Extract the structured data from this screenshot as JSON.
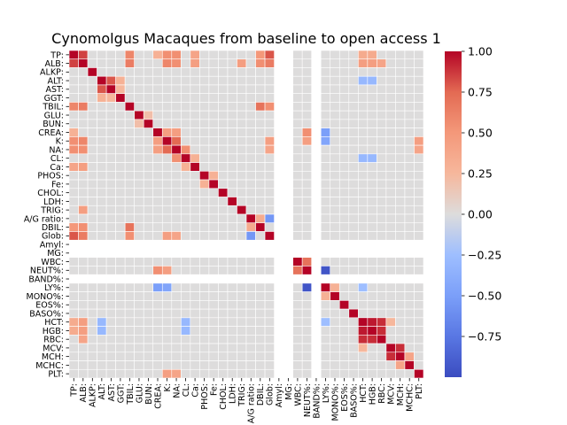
{
  "chart_data": {
    "type": "heatmap",
    "title": "Cynomolgus Macaques from baseline to open access 1",
    "labels": [
      "TP",
      "ALB",
      "ALKP",
      "ALT",
      "AST",
      "GGT",
      "TBIL",
      "GLU",
      "BUN",
      "CREA",
      "K",
      "NA",
      "CL",
      "Ca",
      "PHOS",
      "Fe",
      "CHOL",
      "LDH",
      "TRIG",
      "A/G ratio",
      "DBIL",
      "Glob",
      "Amyl",
      "MG",
      "WBC",
      "NEUT%",
      "BAND%",
      "LY%",
      "MONO%",
      "EOS%",
      "BASO%",
      "HCT",
      "HGB",
      "RBC",
      "MCV",
      "MCH",
      "MCHC",
      "PLT"
    ],
    "y_tick_labels": [
      "TP:",
      "ALB:",
      "ALKP:",
      "ALT:",
      "AST:",
      "GGT:",
      "TBIL:",
      "GLU:",
      "BUN:",
      "CREA:",
      "K:",
      "NA:",
      "CL:",
      "Ca:",
      "PHOS:",
      "Fe:",
      "CHOL:",
      "LDH:",
      "TRIG:",
      "A/G ratio:",
      "DBIL:",
      "Glob:",
      "Amyl:",
      "MG:",
      "WBC:",
      "NEUT%:",
      "BAND%:",
      "LY%:",
      "MONO%:",
      "EOS%:",
      "BASO%:",
      "HCT:",
      "HGB:",
      "RBC:",
      "MCV:",
      "MCH:",
      "MCHC:",
      "PLT:"
    ],
    "x_tick_labels": [
      "TP:",
      "ALB:",
      "ALKP:",
      "ALT:",
      "AST:",
      "GGT:",
      "TBIL:",
      "GLU:",
      "BUN:",
      "CREA:",
      "K:",
      "NA:",
      "CL:",
      "Ca:",
      "PHOS:",
      "Fe:",
      "CHOL:",
      "LDH:",
      "TRIG:",
      "A/G ratio:",
      "DBIL:",
      "Glob:",
      "Amyl:",
      "MG:",
      "WBC:",
      "NEUT%:",
      "BAND%:",
      "LY%:",
      "MONO%:",
      "EOS%:",
      "BASO%:",
      "HCT:",
      "HGB:",
      "RBC:",
      "MCV:",
      "MCH:",
      "MCHC:",
      "PLT:"
    ],
    "empty_labels": [
      "Amyl",
      "MG",
      "BAND%"
    ],
    "colorbar": {
      "min": -1,
      "max": 1,
      "ticks": [
        1.0,
        0.75,
        0.5,
        0.25,
        0.0,
        -0.25,
        -0.5,
        -0.75
      ],
      "tick_labels": [
        "1.00",
        "0.75",
        "0.50",
        "0.25",
        "0.00",
        "−0.25",
        "−0.50",
        "−0.75"
      ],
      "colormap": "coolwarm"
    },
    "correlations": [
      [
        "TP",
        "ALB",
        0.85
      ],
      [
        "TP",
        "TBIL",
        0.6
      ],
      [
        "TP",
        "K",
        0.55
      ],
      [
        "TP",
        "NA",
        0.55
      ],
      [
        "TP",
        "DBIL",
        0.5
      ],
      [
        "TP",
        "Glob",
        0.8
      ],
      [
        "TP",
        "CREA",
        0.3
      ],
      [
        "TP",
        "Ca",
        0.4
      ],
      [
        "ALB",
        "TBIL",
        0.65
      ],
      [
        "ALB",
        "K",
        0.6
      ],
      [
        "ALB",
        "NA",
        0.55
      ],
      [
        "ALB",
        "DBIL",
        0.55
      ],
      [
        "ALB",
        "Glob",
        0.65
      ],
      [
        "ALB",
        "Ca",
        0.45
      ],
      [
        "ALB",
        "TRIG",
        0.45
      ],
      [
        "ALT",
        "AST",
        0.8
      ],
      [
        "ALT",
        "GGT",
        0.3
      ],
      [
        "AST",
        "GGT",
        0.25
      ],
      [
        "TBIL",
        "DBIL",
        0.7
      ],
      [
        "TBIL",
        "Glob",
        0.55
      ],
      [
        "GLU",
        "BUN",
        0.2
      ],
      [
        "CREA",
        "K",
        0.45
      ],
      [
        "CREA",
        "NA",
        0.45
      ],
      [
        "CREA",
        "NEUT%",
        0.55
      ],
      [
        "CREA",
        "LY%",
        -0.5
      ],
      [
        "K",
        "NA",
        0.75
      ],
      [
        "K",
        "Glob",
        0.45
      ],
      [
        "K",
        "NEUT%",
        0.45
      ],
      [
        "K",
        "LY%",
        -0.45
      ],
      [
        "K",
        "PLT",
        0.45
      ],
      [
        "NA",
        "CL",
        0.55
      ],
      [
        "NA",
        "Glob",
        0.4
      ],
      [
        "NA",
        "PLT",
        0.4
      ],
      [
        "CL",
        "Ca",
        0.3
      ],
      [
        "PHOS",
        "Fe",
        0.3
      ],
      [
        "A/G ratio",
        "Glob",
        -0.55
      ],
      [
        "A/G ratio",
        "DBIL",
        0.35
      ],
      [
        "WBC",
        "NEUT%",
        0.7
      ],
      [
        "NEUT%",
        "LY%",
        -0.95
      ],
      [
        "LY%",
        "MONO%",
        0.3
      ],
      [
        "HCT",
        "HGB",
        0.95
      ],
      [
        "HCT",
        "RBC",
        0.9
      ],
      [
        "HGB",
        "RBC",
        0.9
      ],
      [
        "HCT",
        "ALB",
        0.45
      ],
      [
        "HGB",
        "ALB",
        0.45
      ],
      [
        "RBC",
        "ALB",
        0.4
      ],
      [
        "HCT",
        "TP",
        0.35
      ],
      [
        "HGB",
        "TP",
        0.35
      ],
      [
        "MCV",
        "MCH",
        0.9
      ],
      [
        "MCH",
        "MCHC",
        0.4
      ],
      [
        "MCV",
        "HCT",
        0.25
      ],
      [
        "ALT",
        "HCT",
        -0.3
      ],
      [
        "ALT",
        "HGB",
        -0.3
      ],
      [
        "CL",
        "HCT",
        -0.3
      ],
      [
        "CL",
        "HGB",
        -0.3
      ],
      [
        "LY%",
        "HCT",
        -0.25
      ]
    ]
  }
}
